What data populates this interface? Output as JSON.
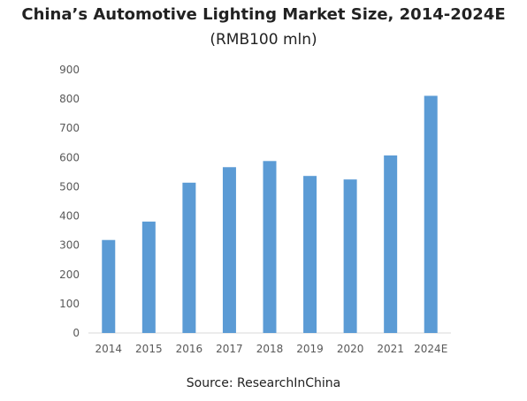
{
  "chart_data": {
    "type": "bar",
    "title": "China’s Automotive Lighting Market Size, 2014-2024E",
    "subtitle": "(RMB100 mln)",
    "categories": [
      "2014",
      "2015",
      "2016",
      "2017",
      "2018",
      "2019",
      "2020",
      "2021",
      "2024E"
    ],
    "values": [
      318,
      381,
      514,
      567,
      588,
      537,
      525,
      607,
      811
    ],
    "ylim": [
      0,
      900
    ],
    "yticks": [
      0,
      100,
      200,
      300,
      400,
      500,
      600,
      700,
      800,
      900
    ],
    "grid": false,
    "bar_color": "#5b9bd5",
    "source": "Source: ResearchInChina"
  }
}
